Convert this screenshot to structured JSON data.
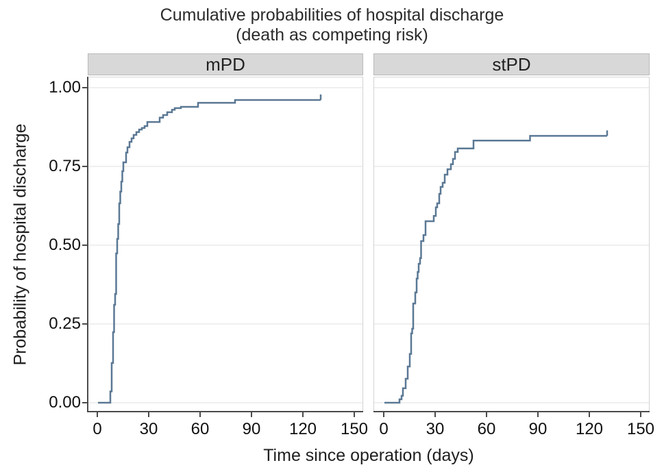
{
  "title": {
    "line1": "Cumulative probabilities of hospital discharge",
    "line2": "(death as competing risk)"
  },
  "axes": {
    "x_label": "Time since operation (days)",
    "y_label": "Probability of hospital discharge",
    "x_tick_labels": [
      "0",
      "30",
      "60",
      "90",
      "120",
      "150"
    ],
    "y_tick_labels": [
      "0.00",
      "0.25",
      "0.50",
      "0.75",
      "1.00"
    ]
  },
  "chart_data": {
    "type": "line",
    "style": "step-function (cumulative incidence curves, faceted)",
    "title": "Cumulative probabilities of hospital discharge (death as competing risk)",
    "xlabel": "Time since operation (days)",
    "ylabel": "Probability of hospital discharge",
    "xlim": [
      0,
      150
    ],
    "ylim": [
      0,
      1
    ],
    "x_ticks": [
      0,
      30,
      60,
      90,
      120,
      150
    ],
    "y_ticks": [
      0.0,
      0.25,
      0.5,
      0.75,
      1.0
    ],
    "grid": "horizontal gridlines only, very light",
    "legend": "none",
    "facet_labels": [
      "mPD",
      "stPD"
    ],
    "series": [
      {
        "name": "mPD",
        "censor_tick_at_end": true,
        "points": [
          [
            0,
            0
          ],
          [
            6.8,
            0
          ],
          [
            7.2,
            0.036
          ],
          [
            8,
            0.126
          ],
          [
            8.8,
            0.224
          ],
          [
            9.4,
            0.311
          ],
          [
            10,
            0.345
          ],
          [
            10.6,
            0.474
          ],
          [
            11.2,
            0.52
          ],
          [
            11.8,
            0.567
          ],
          [
            12.4,
            0.633
          ],
          [
            13,
            0.67
          ],
          [
            13.6,
            0.702
          ],
          [
            14.2,
            0.735
          ],
          [
            14.8,
            0.763
          ],
          [
            16.4,
            0.794
          ],
          [
            17.2,
            0.811
          ],
          [
            18.4,
            0.828
          ],
          [
            19.6,
            0.839
          ],
          [
            20.8,
            0.85
          ],
          [
            22.4,
            0.859
          ],
          [
            24,
            0.867
          ],
          [
            25.6,
            0.872
          ],
          [
            27.2,
            0.878
          ],
          [
            28.8,
            0.891
          ],
          [
            36,
            0.905
          ],
          [
            38,
            0.913
          ],
          [
            40.4,
            0.922
          ],
          [
            43.2,
            0.93
          ],
          [
            44.8,
            0.935
          ],
          [
            48.4,
            0.939
          ],
          [
            58.4,
            0.952
          ],
          [
            80,
            0.961
          ],
          [
            130,
            0.961
          ]
        ]
      },
      {
        "name": "stPD",
        "censor_tick_at_end": true,
        "points": [
          [
            0,
            0
          ],
          [
            8,
            0
          ],
          [
            8.8,
            0.011
          ],
          [
            10,
            0.022
          ],
          [
            10.8,
            0.046
          ],
          [
            12.4,
            0.076
          ],
          [
            13.6,
            0.115
          ],
          [
            14.8,
            0.155
          ],
          [
            15.6,
            0.22
          ],
          [
            16.2,
            0.235
          ],
          [
            16.8,
            0.315
          ],
          [
            18,
            0.35
          ],
          [
            18.8,
            0.394
          ],
          [
            19.4,
            0.415
          ],
          [
            20,
            0.441
          ],
          [
            20.8,
            0.459
          ],
          [
            21.4,
            0.513
          ],
          [
            22.8,
            0.532
          ],
          [
            24,
            0.576
          ],
          [
            28.8,
            0.593
          ],
          [
            30,
            0.62
          ],
          [
            30.8,
            0.633
          ],
          [
            32,
            0.663
          ],
          [
            32.8,
            0.685
          ],
          [
            34,
            0.698
          ],
          [
            35.2,
            0.724
          ],
          [
            36.8,
            0.741
          ],
          [
            38.8,
            0.757
          ],
          [
            40,
            0.774
          ],
          [
            41.2,
            0.796
          ],
          [
            42.8,
            0.807
          ],
          [
            52,
            0.832
          ],
          [
            85,
            0.847
          ],
          [
            130,
            0.847
          ]
        ]
      }
    ],
    "colors": {
      "line": "#5a7894",
      "strip_background": "#d8d8d8",
      "gridline": "#efefef",
      "axis": "#4a4a4a",
      "text": "#1f1f1f"
    }
  }
}
